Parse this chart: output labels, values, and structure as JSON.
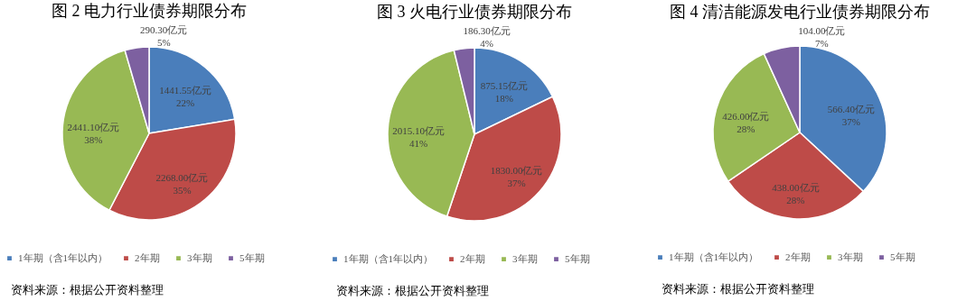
{
  "chart_data": [
    {
      "type": "pie",
      "title": "图 2  电力行业债券期限分布",
      "categories": [
        "1年期（含1年以内）",
        "2年期",
        "3年期",
        "5年期"
      ],
      "values": [
        1441.55,
        2268.0,
        2441.1,
        290.3
      ],
      "colors": [
        "#4a7ebb",
        "#be4b48",
        "#98b954",
        "#7d60a0"
      ],
      "value_labels": [
        "1441.55亿元\n22%",
        "2268.00亿元\n35%",
        "2441.10亿元\n38%",
        "290.30亿元\n5%"
      ],
      "legend": "bottom",
      "annotations": [
        "资料来源：根据公开资料整理"
      ]
    },
    {
      "type": "pie",
      "title": "图 3  火电行业债券期限分布",
      "categories": [
        "1年期（含1年以内）",
        "2年期",
        "3年期",
        "5年期"
      ],
      "values": [
        875.15,
        1830.0,
        2015.1,
        186.3
      ],
      "colors": [
        "#4a7ebb",
        "#be4b48",
        "#98b954",
        "#7d60a0"
      ],
      "value_labels": [
        "875.15亿元\n18%",
        "1830.00亿元\n37%",
        "2015.10亿元\n41%",
        "186.30亿元\n4%"
      ],
      "legend": "bottom",
      "annotations": [
        "资料来源：根据公开资料整理"
      ]
    },
    {
      "type": "pie",
      "title": "图 4  清洁能源发电行业债券期限分布",
      "categories": [
        "1年期（含1年以内）",
        "2年期",
        "3年期",
        "5年期"
      ],
      "values": [
        566.4,
        438.0,
        426.0,
        104.0
      ],
      "colors": [
        "#4a7ebb",
        "#be4b48",
        "#98b954",
        "#7d60a0"
      ],
      "value_labels": [
        "566.40亿元\n37%",
        "438.00亿元\n28%",
        "426.00亿元\n28%",
        "104.00亿元\n7%"
      ],
      "legend": "bottom",
      "annotations": [
        "资料来源：根据公开资料整理"
      ]
    }
  ]
}
